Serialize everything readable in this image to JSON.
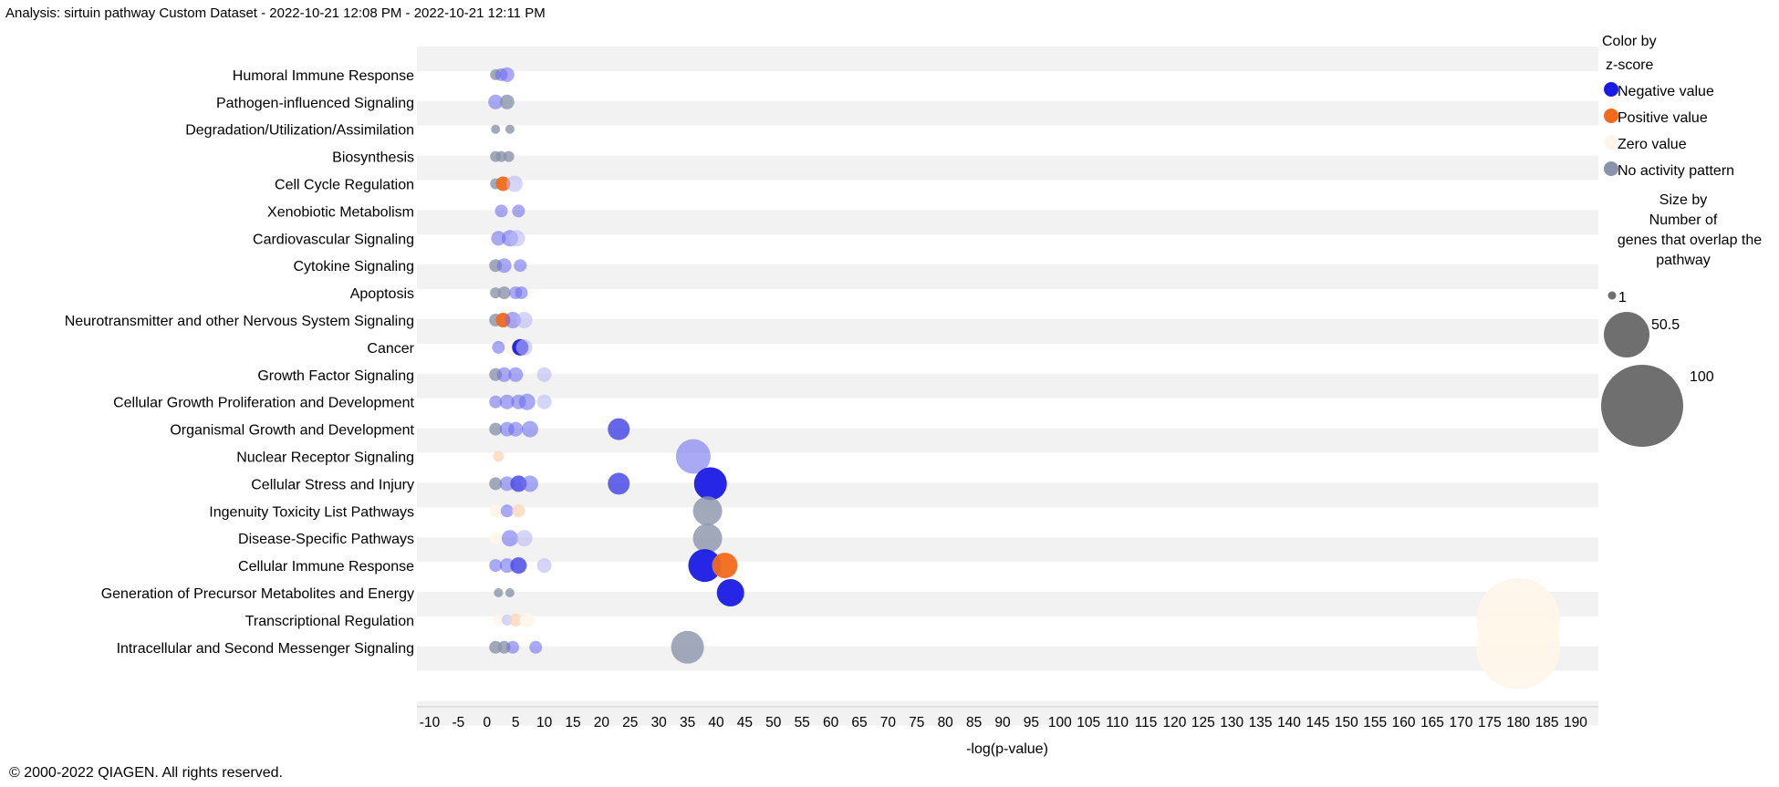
{
  "header": {
    "title": "Analysis: sirtuin pathway Custom Dataset - 2022-10-21 12:08 PM - 2022-10-21 12:11 PM"
  },
  "footer": {
    "copyright": "© 2000-2022 QIAGEN. All rights reserved."
  },
  "colors": {
    "negative": "#1a1ae6",
    "positive": "#f26a1b",
    "zero": "#fff6ea",
    "no_activity": "#8a93aa",
    "stripe": "#f2f2f2"
  },
  "legend": {
    "color_title_1": "Color by",
    "color_title_2": "z-score",
    "negative_label": "Negative value",
    "positive_label": "Positive value",
    "zero_label": "Zero value",
    "no_activity_label": "No activity pattern",
    "size_title_1": "Size by",
    "size_title_2": "Number of",
    "size_title_3": "genes that overlap the",
    "size_title_4": "pathway",
    "size_1": "1",
    "size_2": "50.5",
    "size_3": "100"
  },
  "chart_data": {
    "type": "scatter",
    "title": "",
    "xlabel": "-log(p-value)",
    "ylabel": "",
    "xlim": [
      -10,
      190
    ],
    "xticks": [
      -10,
      -5,
      0,
      5,
      10,
      15,
      20,
      25,
      30,
      35,
      40,
      45,
      50,
      55,
      60,
      65,
      70,
      75,
      80,
      85,
      90,
      95,
      100,
      105,
      110,
      115,
      120,
      125,
      130,
      135,
      140,
      145,
      150,
      155,
      160,
      165,
      170,
      175,
      180,
      185,
      190
    ],
    "xtick_labels": [
      "-10",
      "-5",
      "0",
      "5",
      "10",
      "15",
      "20",
      "25",
      "30",
      "35",
      "40",
      "45",
      "50",
      "55",
      "60",
      "65",
      "70",
      "75",
      "80",
      "85",
      "90",
      "95",
      "100",
      "105",
      "110",
      "115",
      "120",
      "125",
      "130",
      "135",
      "140",
      "145",
      "150",
      "155",
      "160",
      "165",
      "170",
      "175",
      "180",
      "185",
      "190"
    ],
    "categories": [
      "Humoral Immune Response",
      "Pathogen-influenced Signaling",
      "Degradation/Utilization/Assimilation",
      "Biosynthesis",
      "Cell Cycle Regulation",
      "Xenobiotic Metabolism",
      "Cardiovascular Signaling",
      "Cytokine Signaling",
      "Apoptosis",
      "Neurotransmitter and other Nervous System Signaling",
      "Cancer",
      "Growth Factor Signaling",
      "Cellular Growth Proliferation and Development",
      "Organismal Growth and Development",
      "Nuclear Receptor Signaling",
      "Cellular Stress and Injury",
      "Ingenuity Toxicity List Pathways",
      "Disease-Specific Pathways",
      "Cellular Immune Response",
      "Generation of Precursor Metabolites and Energy",
      "Transcriptional Regulation",
      "Intracellular and Second Messenger Signaling"
    ],
    "points": [
      {
        "cat": 0,
        "x": 1.5,
        "size": 6,
        "z": "none"
      },
      {
        "cat": 0,
        "x": 2.5,
        "size": 7,
        "z": "neg_light"
      },
      {
        "cat": 0,
        "x": 3.5,
        "size": 8,
        "z": "neg_light"
      },
      {
        "cat": 1,
        "x": 1.5,
        "size": 8,
        "z": "neg_light"
      },
      {
        "cat": 1,
        "x": 3.5,
        "size": 8,
        "z": "none"
      },
      {
        "cat": 2,
        "x": 1.5,
        "size": 5,
        "z": "none"
      },
      {
        "cat": 2,
        "x": 4.0,
        "size": 5,
        "z": "none"
      },
      {
        "cat": 3,
        "x": 1.5,
        "size": 6,
        "z": "none"
      },
      {
        "cat": 3,
        "x": 2.5,
        "size": 6,
        "z": "none"
      },
      {
        "cat": 3,
        "x": 3.8,
        "size": 6,
        "z": "none"
      },
      {
        "cat": 4,
        "x": 1.5,
        "size": 6,
        "z": "none"
      },
      {
        "cat": 4,
        "x": 2.8,
        "size": 8,
        "z": "pos"
      },
      {
        "cat": 4,
        "x": 4.8,
        "size": 9,
        "z": "neg_faint"
      },
      {
        "cat": 5,
        "x": 2.5,
        "size": 7,
        "z": "neg_light"
      },
      {
        "cat": 5,
        "x": 5.5,
        "size": 7,
        "z": "neg_light"
      },
      {
        "cat": 6,
        "x": 2.0,
        "size": 8,
        "z": "neg_light"
      },
      {
        "cat": 6,
        "x": 4.0,
        "size": 9,
        "z": "neg_light"
      },
      {
        "cat": 6,
        "x": 5.2,
        "size": 9,
        "z": "neg_faint"
      },
      {
        "cat": 7,
        "x": 1.5,
        "size": 7,
        "z": "none"
      },
      {
        "cat": 7,
        "x": 3.0,
        "size": 8,
        "z": "neg_light"
      },
      {
        "cat": 7,
        "x": 5.8,
        "size": 7,
        "z": "neg_light"
      },
      {
        "cat": 8,
        "x": 1.5,
        "size": 6,
        "z": "none"
      },
      {
        "cat": 8,
        "x": 3.0,
        "size": 7,
        "z": "none"
      },
      {
        "cat": 8,
        "x": 5.0,
        "size": 7,
        "z": "neg_light"
      },
      {
        "cat": 8,
        "x": 6.0,
        "size": 7,
        "z": "neg_light"
      },
      {
        "cat": 9,
        "x": 1.5,
        "size": 7,
        "z": "none"
      },
      {
        "cat": 9,
        "x": 2.8,
        "size": 8,
        "z": "pos"
      },
      {
        "cat": 9,
        "x": 4.5,
        "size": 9,
        "z": "neg_light"
      },
      {
        "cat": 9,
        "x": 6.5,
        "size": 9,
        "z": "neg_faint"
      },
      {
        "cat": 10,
        "x": 2.0,
        "size": 7,
        "z": "neg_light"
      },
      {
        "cat": 10,
        "x": 4.5,
        "size": 9,
        "z": "zero"
      },
      {
        "cat": 10,
        "x": 5.8,
        "size": 9,
        "z": "neg"
      },
      {
        "cat": 10,
        "x": 6.5,
        "size": 9,
        "z": "neg_faint"
      },
      {
        "cat": 11,
        "x": 1.5,
        "size": 7,
        "z": "none"
      },
      {
        "cat": 11,
        "x": 3.0,
        "size": 8,
        "z": "neg_light"
      },
      {
        "cat": 11,
        "x": 5.0,
        "size": 8,
        "z": "neg_light"
      },
      {
        "cat": 11,
        "x": 10.0,
        "size": 8,
        "z": "neg_faint"
      },
      {
        "cat": 12,
        "x": 1.5,
        "size": 7,
        "z": "neg_light"
      },
      {
        "cat": 12,
        "x": 3.5,
        "size": 8,
        "z": "neg_light"
      },
      {
        "cat": 12,
        "x": 5.5,
        "size": 8,
        "z": "neg_light"
      },
      {
        "cat": 12,
        "x": 7.0,
        "size": 9,
        "z": "neg_light"
      },
      {
        "cat": 12,
        "x": 10.0,
        "size": 8,
        "z": "neg_faint"
      },
      {
        "cat": 13,
        "x": 1.5,
        "size": 7,
        "z": "none"
      },
      {
        "cat": 13,
        "x": 3.5,
        "size": 8,
        "z": "neg_light"
      },
      {
        "cat": 13,
        "x": 5.0,
        "size": 8,
        "z": "neg_light"
      },
      {
        "cat": 13,
        "x": 7.5,
        "size": 9,
        "z": "neg_light"
      },
      {
        "cat": 13,
        "x": 23.0,
        "size": 12,
        "z": "neg_mid"
      },
      {
        "cat": 14,
        "x": 2.0,
        "size": 6,
        "z": "zero_pos"
      },
      {
        "cat": 14,
        "x": 36.0,
        "size": 19,
        "z": "neg_light"
      },
      {
        "cat": 15,
        "x": 1.5,
        "size": 7,
        "z": "none"
      },
      {
        "cat": 15,
        "x": 3.5,
        "size": 8,
        "z": "neg_light"
      },
      {
        "cat": 15,
        "x": 5.5,
        "size": 9,
        "z": "neg_mid"
      },
      {
        "cat": 15,
        "x": 7.5,
        "size": 9,
        "z": "neg_light"
      },
      {
        "cat": 15,
        "x": 23.0,
        "size": 12,
        "z": "neg_mid"
      },
      {
        "cat": 15,
        "x": 39.0,
        "size": 18,
        "z": "neg"
      },
      {
        "cat": 16,
        "x": 1.5,
        "size": 7,
        "z": "zero"
      },
      {
        "cat": 16,
        "x": 3.5,
        "size": 7,
        "z": "neg_light"
      },
      {
        "cat": 16,
        "x": 5.5,
        "size": 7,
        "z": "zero_pos"
      },
      {
        "cat": 16,
        "x": 38.5,
        "size": 16,
        "z": "none"
      },
      {
        "cat": 17,
        "x": 1.5,
        "size": 7,
        "z": "zero"
      },
      {
        "cat": 17,
        "x": 4.0,
        "size": 9,
        "z": "neg_light"
      },
      {
        "cat": 17,
        "x": 6.5,
        "size": 9,
        "z": "neg_faint"
      },
      {
        "cat": 17,
        "x": 38.5,
        "size": 16,
        "z": "none"
      },
      {
        "cat": 18,
        "x": 1.5,
        "size": 7,
        "z": "neg_light"
      },
      {
        "cat": 18,
        "x": 3.5,
        "size": 8,
        "z": "neg_light"
      },
      {
        "cat": 18,
        "x": 5.5,
        "size": 9,
        "z": "neg_mid"
      },
      {
        "cat": 18,
        "x": 10.0,
        "size": 8,
        "z": "neg_faint"
      },
      {
        "cat": 18,
        "x": 38.0,
        "size": 18,
        "z": "neg"
      },
      {
        "cat": 18,
        "x": 41.5,
        "size": 14,
        "z": "pos"
      },
      {
        "cat": 19,
        "x": 2.0,
        "size": 5,
        "z": "none"
      },
      {
        "cat": 19,
        "x": 4.0,
        "size": 5,
        "z": "none"
      },
      {
        "cat": 19,
        "x": 42.5,
        "size": 15,
        "z": "neg"
      },
      {
        "cat": 20,
        "x": 2.0,
        "size": 6,
        "z": "zero"
      },
      {
        "cat": 20,
        "x": 3.5,
        "size": 6,
        "z": "neg_faint"
      },
      {
        "cat": 20,
        "x": 5.0,
        "size": 7,
        "z": "zero_pos"
      },
      {
        "cat": 20,
        "x": 7.0,
        "size": 8,
        "z": "zero"
      },
      {
        "cat": 20,
        "x": 180.0,
        "size": 46,
        "z": "zero"
      },
      {
        "cat": 21,
        "x": 1.5,
        "size": 7,
        "z": "none"
      },
      {
        "cat": 21,
        "x": 3.0,
        "size": 7,
        "z": "none"
      },
      {
        "cat": 21,
        "x": 4.5,
        "size": 7,
        "z": "neg_light"
      },
      {
        "cat": 21,
        "x": 8.5,
        "size": 7,
        "z": "neg_light"
      },
      {
        "cat": 21,
        "x": 35.0,
        "size": 18,
        "z": "none"
      },
      {
        "cat": 21,
        "x": 180.0,
        "size": 46,
        "z": "zero"
      }
    ]
  }
}
